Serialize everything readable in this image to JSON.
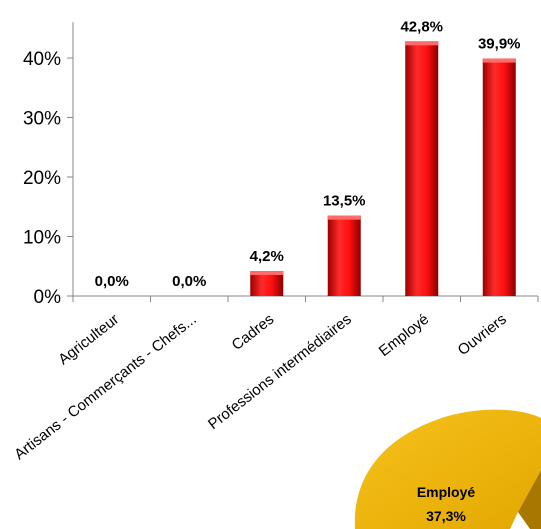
{
  "chart_data": [
    {
      "type": "bar",
      "categories": [
        "Agriculteur",
        "Artisans - Commerçants - Chefs...",
        "Cadres",
        "Professions intermédiaires",
        "Employé",
        "Ouvriers"
      ],
      "values": [
        0.0,
        0.0,
        4.2,
        13.5,
        42.8,
        39.9
      ],
      "data_labels": [
        "0,0%",
        "0,0%",
        "4,2%",
        "13,5%",
        "42,8%",
        "39,9%"
      ],
      "ylim": [
        0,
        45
      ],
      "yticks": [
        {
          "value": 0,
          "label": "0%"
        },
        {
          "value": 10,
          "label": "10%"
        },
        {
          "value": 20,
          "label": "20%"
        },
        {
          "value": 30,
          "label": "30%"
        },
        {
          "value": 40,
          "label": "40%"
        }
      ],
      "grid": false,
      "bar_color": "#ee1111"
    },
    {
      "type": "pie",
      "partial": true,
      "slices": [
        {
          "label": "Employé",
          "value_label": "37,3%",
          "value": 37.3,
          "color": "#f2b705"
        }
      ]
    }
  ]
}
